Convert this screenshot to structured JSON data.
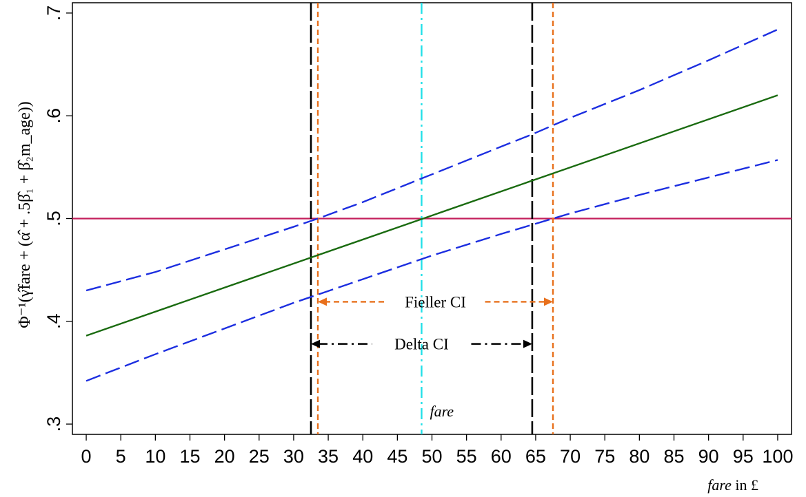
{
  "chart_data": {
    "type": "line",
    "title": "",
    "xlabel": {
      "italic": "fare",
      "rest": " in £"
    },
    "ylabel": "Φ⁻¹(γ̂fare + (α̂ + .5β̂₁ + β̂₂m_age))",
    "xlim": [
      -2,
      102
    ],
    "ylim": [
      0.29,
      0.71
    ],
    "x_ticks": [
      0,
      5,
      10,
      15,
      20,
      25,
      30,
      35,
      40,
      45,
      50,
      55,
      60,
      65,
      70,
      75,
      80,
      85,
      90,
      95,
      100
    ],
    "x_tick_labels": [
      "0",
      "5",
      "10",
      "15",
      "20",
      "25",
      "30",
      "35",
      "40",
      "45",
      "50",
      "55",
      "60",
      "65",
      "70",
      "75",
      "80",
      "85",
      "90",
      "95",
      "100"
    ],
    "y_ticks": [
      0.3,
      0.4,
      0.5,
      0.6,
      0.7
    ],
    "y_tick_labels": [
      ".3",
      ".4",
      ".5",
      ".6",
      ".7"
    ],
    "grid": false,
    "series": [
      {
        "x": [
          0,
          100
        ],
        "y": [
          0.386,
          0.62
        ],
        "color": "#1a6b10",
        "style": "solid"
      },
      {
        "x": [
          0,
          10,
          20,
          30,
          33.5,
          40,
          48.5,
          50,
          60,
          64.5,
          70,
          80,
          90,
          100
        ],
        "y": [
          0.43,
          0.448,
          0.47,
          0.492,
          0.5,
          0.516,
          0.539,
          0.543,
          0.57,
          0.582,
          0.598,
          0.625,
          0.654,
          0.684
        ],
        "color": "#1c2ee0",
        "style": "dashed"
      },
      {
        "x": [
          0,
          10,
          20,
          30,
          40,
          50,
          60,
          67.5,
          70,
          80,
          90,
          100
        ],
        "y": [
          0.342,
          0.368,
          0.393,
          0.418,
          0.441,
          0.464,
          0.485,
          0.5,
          0.505,
          0.523,
          0.54,
          0.557
        ],
        "color": "#1c2ee0",
        "style": "dashed"
      }
    ],
    "reference_lines": {
      "horizontal": {
        "y": 0.5,
        "color": "#c41e5a"
      },
      "vertical": [
        {
          "x": 32.5,
          "color": "#000000",
          "style": "longdash"
        },
        {
          "x": 64.5,
          "color": "#000000",
          "style": "longdash"
        },
        {
          "x": 33.5,
          "color": "#e8701c",
          "style": "shortdash"
        },
        {
          "x": 67.5,
          "color": "#e8701c",
          "style": "shortdash"
        },
        {
          "x": 48.5,
          "color": "#22e0e8",
          "style": "dashdot"
        }
      ]
    },
    "annotations": [
      {
        "text": "Fieller CI",
        "x_from": 33.5,
        "x_to": 67.5,
        "y": 0.419,
        "color": "#e8701c"
      },
      {
        "text": "Delta CI",
        "x_from": 32.5,
        "x_to": 64.5,
        "y": 0.378,
        "color": "#000000"
      },
      {
        "text": "fare",
        "x": 48.5,
        "y": 0.31,
        "italic": true
      }
    ]
  }
}
